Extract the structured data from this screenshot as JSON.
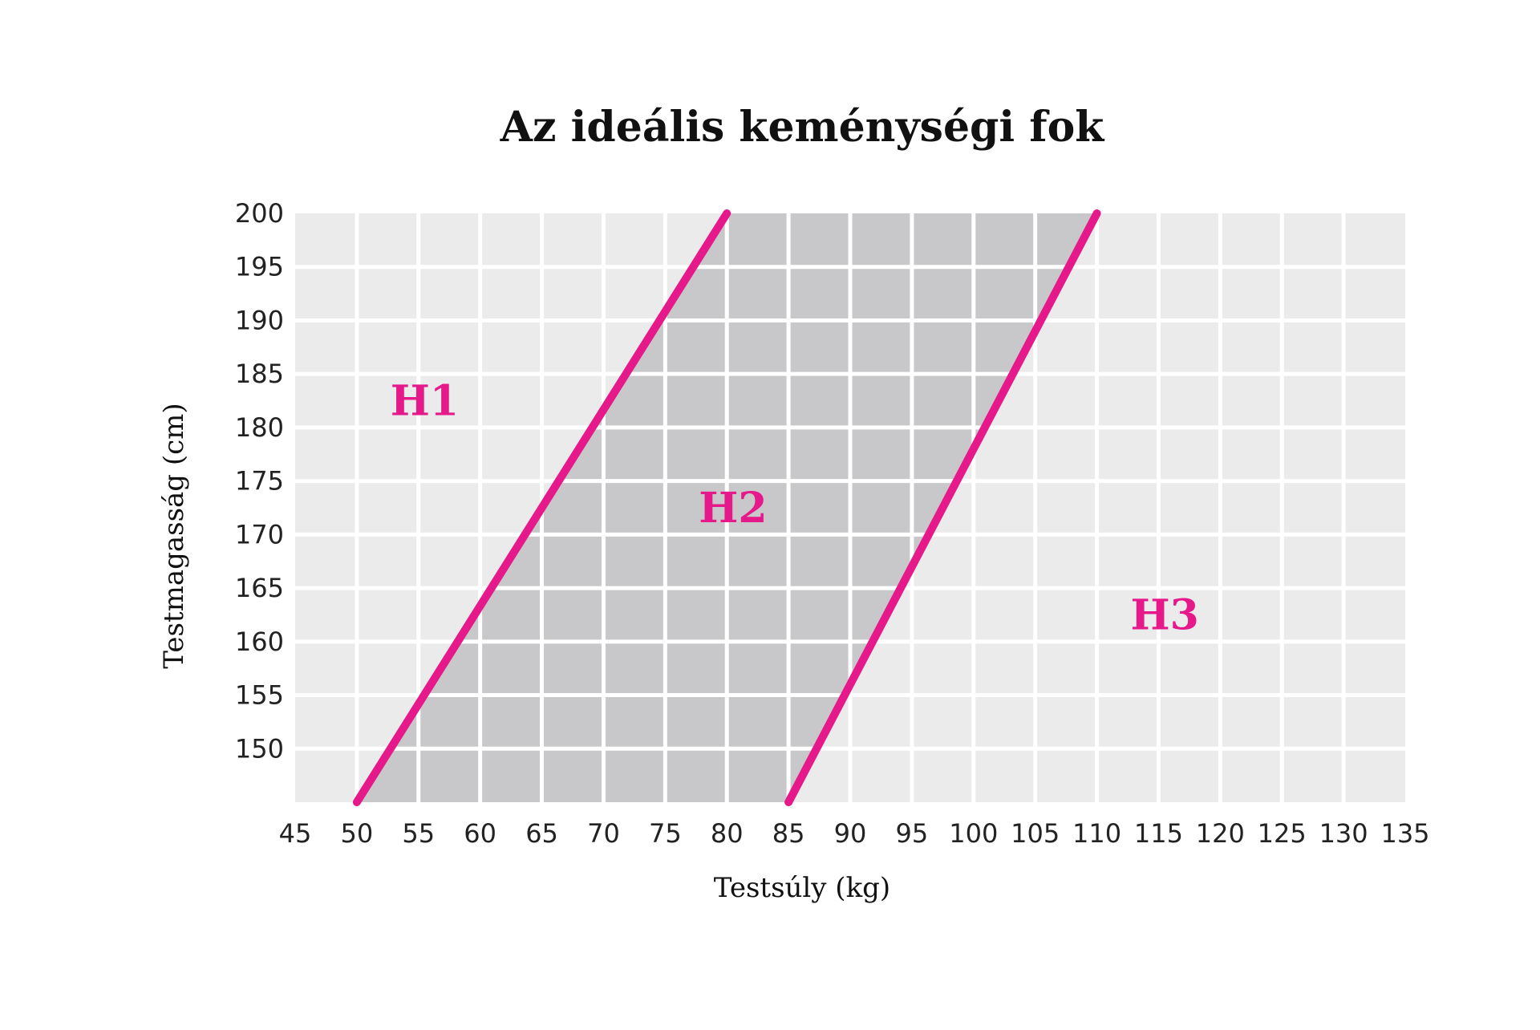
{
  "chart_data": {
    "type": "area",
    "title": "Az ideális keménységi fok",
    "xlabel": "Testsúly (kg)",
    "ylabel": "Testmagasság (cm)",
    "xlim": [
      45,
      135
    ],
    "ylim": [
      145,
      200
    ],
    "x_ticks": [
      45,
      50,
      55,
      60,
      65,
      70,
      75,
      80,
      85,
      90,
      95,
      100,
      105,
      110,
      115,
      120,
      125,
      130,
      135
    ],
    "y_ticks": [
      150,
      155,
      160,
      165,
      170,
      175,
      180,
      185,
      190,
      195,
      200
    ],
    "grid": true,
    "legend": "none",
    "boundaries": [
      {
        "points": [
          [
            50,
            145
          ],
          [
            80,
            200
          ]
        ]
      },
      {
        "points": [
          [
            85,
            145
          ],
          [
            110,
            200
          ]
        ]
      }
    ],
    "regions": [
      {
        "label": "H1",
        "label_at": [
          55.5,
          182.5
        ]
      },
      {
        "label": "H2",
        "label_at": [
          80.5,
          172.5
        ]
      },
      {
        "label": "H3",
        "label_at": [
          115.5,
          162.5
        ]
      }
    ],
    "colors": {
      "plot_bg": "#ebebeb",
      "band_fill": "#c8c8ca",
      "grid": "#ffffff",
      "line": "#e6198b",
      "label": "#e6198b"
    }
  }
}
